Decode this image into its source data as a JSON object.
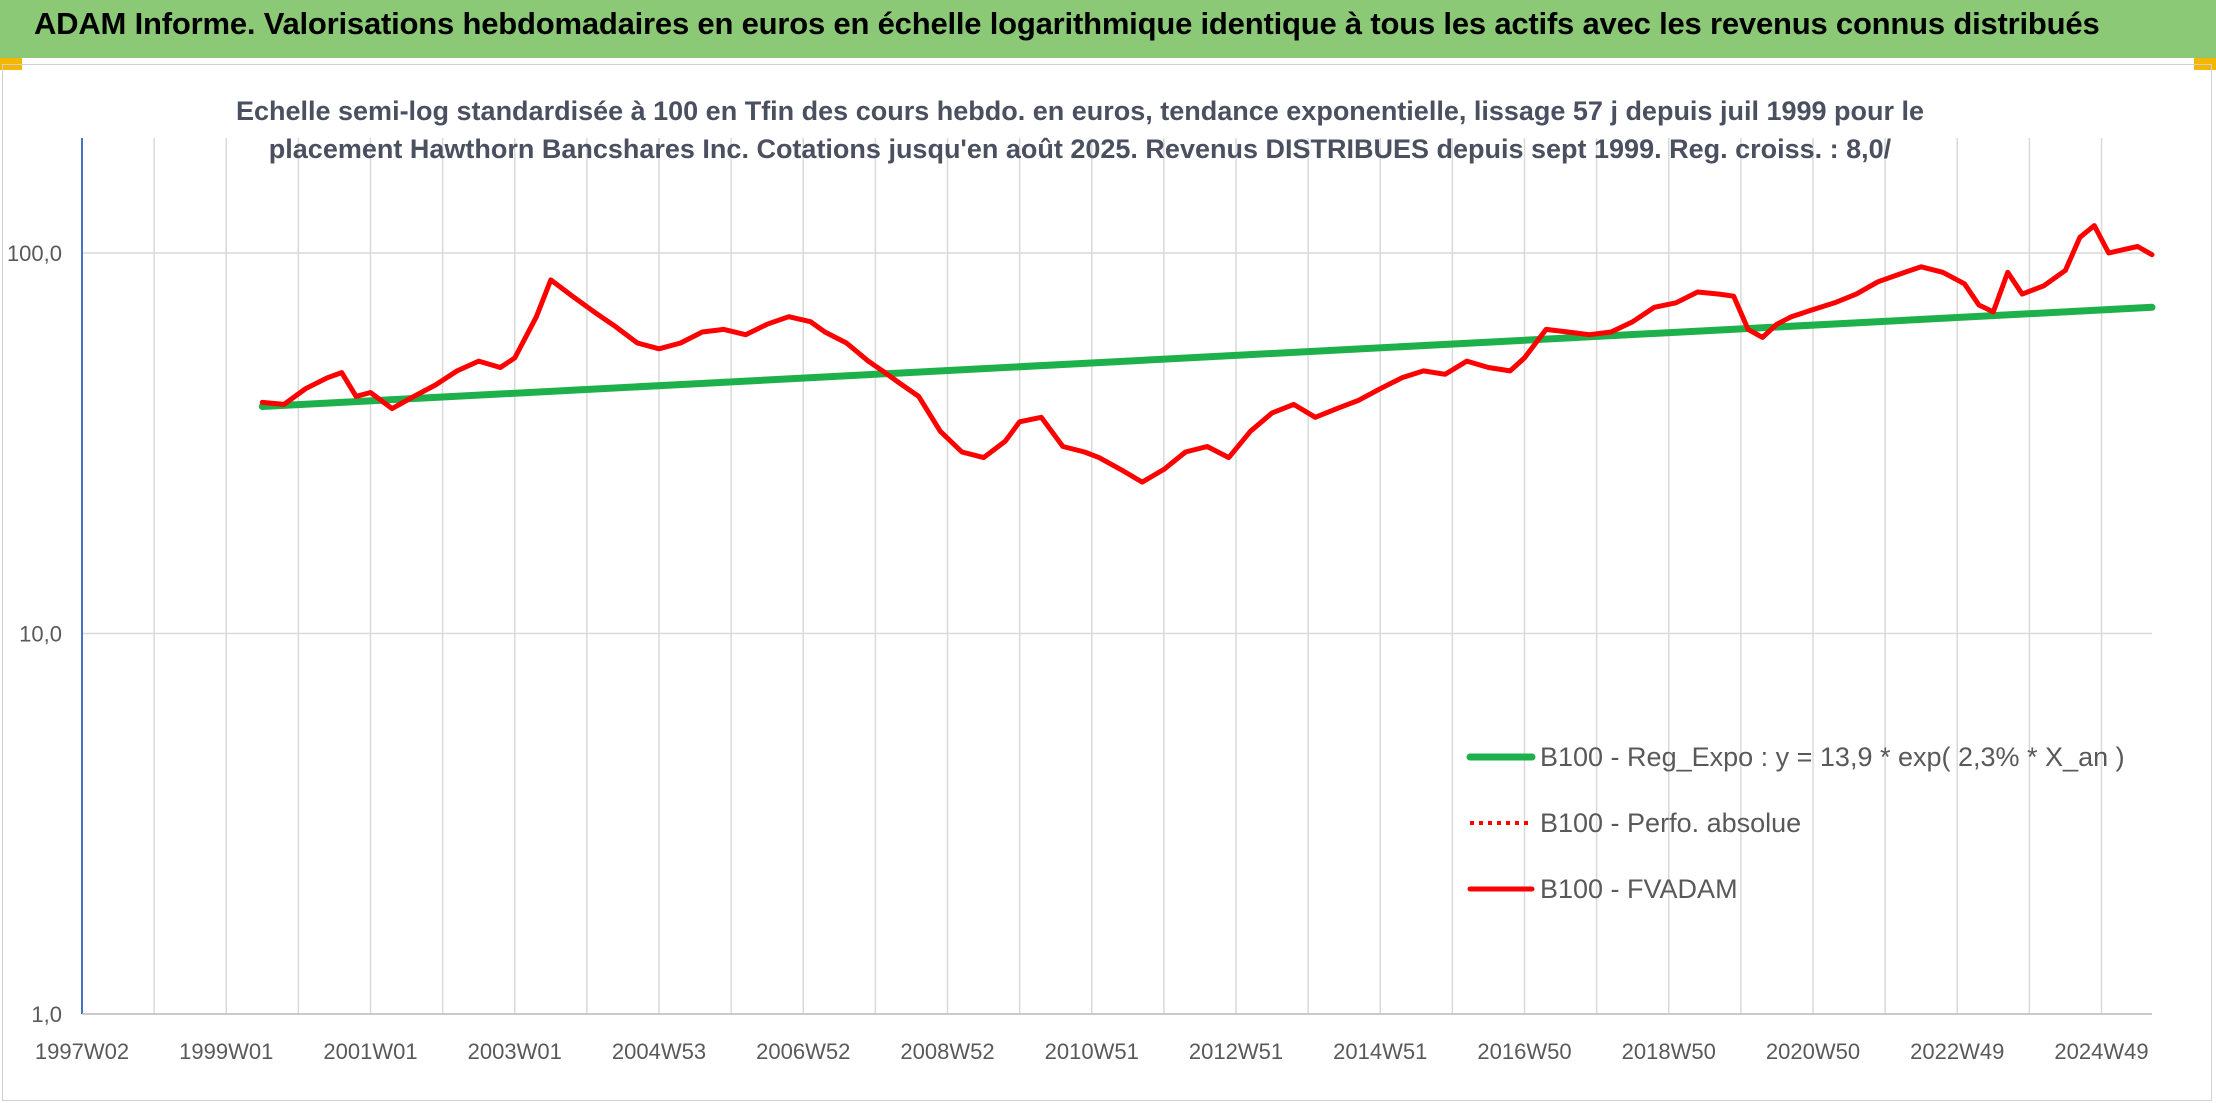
{
  "banner": {
    "title": "ADAM Informe. Valorisations hebdomadaires en euros en échelle logarithmique identique à tous les actifs avec les revenus connus distribués"
  },
  "colors": {
    "banner": "#8cc977",
    "corner": "#f3b700",
    "trend": "#1eb04b",
    "series": "#ff0000",
    "axis": "#4472c4",
    "grid": "#d9d9d9"
  },
  "chart_data": {
    "type": "line",
    "title": "Echelle semi-log standardisée à 100 en Tfin des cours hebdo. en euros, tendance exponentielle, lissage 57 j depuis juil 1999 pour le placement Hawthorn Bancshares Inc. Cotations jusqu'en août 2025. Revenus DISTRIBUES depuis sept 1999. Reg. croiss. : 8,0/",
    "y_scale": "log",
    "ylim": [
      1,
      200
    ],
    "y_ticks": [
      1,
      10,
      100
    ],
    "y_tick_labels": [
      "1,0",
      "10,0",
      "100,0"
    ],
    "xlim": [
      1997.0,
      2025.7
    ],
    "x_ticks": [
      1997.0,
      1999.0,
      2001.0,
      2003.0,
      2005.0,
      2007.0,
      2009.0,
      2011.0,
      2013.0,
      2015.0,
      2017.0,
      2019.0,
      2021.0,
      2023.0,
      2025.0
    ],
    "x_tick_labels": [
      "1997W02",
      "1999W01",
      "2001W01",
      "2003W01",
      "2004W53",
      "2006W52",
      "2008W52",
      "2010W51",
      "2012W51",
      "2014W51",
      "2016W50",
      "2018W50",
      "2020W50",
      "2022W49",
      "2024W49"
    ],
    "grid": true,
    "legend_position": "bottom-right",
    "series": [
      {
        "name": "B100 - Reg_Expo : y = 13,9 * exp( 2,3% *  X_an )",
        "style": "solid-thick",
        "color": "#1eb04b",
        "x": [
          1999.5,
          2025.7
        ],
        "y": [
          39.5,
          72
        ]
      },
      {
        "name": "B100 - Perfo. absolue",
        "style": "dotted",
        "color": "#ff0000",
        "x": [],
        "y": []
      },
      {
        "name": "B100 - FVADAM",
        "style": "solid",
        "color": "#ff0000",
        "x": [
          1999.5,
          1999.8,
          2000.1,
          2000.4,
          2000.6,
          2000.8,
          2001.0,
          2001.3,
          2001.6,
          2001.9,
          2002.2,
          2002.5,
          2002.8,
          2003.0,
          2003.3,
          2003.5,
          2003.8,
          2004.1,
          2004.4,
          2004.7,
          2005.0,
          2005.3,
          2005.6,
          2005.9,
          2006.2,
          2006.5,
          2006.8,
          2007.1,
          2007.3,
          2007.6,
          2007.9,
          2008.1,
          2008.3,
          2008.6,
          2008.9,
          2009.2,
          2009.5,
          2009.8,
          2010.0,
          2010.3,
          2010.6,
          2010.9,
          2011.1,
          2011.4,
          2011.7,
          2012.0,
          2012.3,
          2012.6,
          2012.9,
          2013.2,
          2013.5,
          2013.8,
          2014.1,
          2014.4,
          2014.7,
          2015.0,
          2015.3,
          2015.6,
          2015.9,
          2016.2,
          2016.5,
          2016.8,
          2017.0,
          2017.3,
          2017.6,
          2017.9,
          2018.2,
          2018.5,
          2018.8,
          2019.1,
          2019.4,
          2019.7,
          2019.9,
          2020.1,
          2020.3,
          2020.5,
          2020.7,
          2021.0,
          2021.3,
          2021.6,
          2021.9,
          2022.2,
          2022.5,
          2022.8,
          2023.1,
          2023.3,
          2023.5,
          2023.7,
          2023.9,
          2024.2,
          2024.5,
          2024.7,
          2024.9,
          2025.1,
          2025.3,
          2025.5,
          2025.7
        ],
        "y": [
          40.5,
          40,
          44,
          47,
          48.5,
          42,
          43,
          39,
          42,
          45,
          49,
          52,
          50,
          53,
          68,
          85,
          77,
          70,
          64,
          58,
          56,
          58,
          62,
          63,
          61,
          65,
          68,
          66,
          62,
          58,
          52,
          49,
          46,
          42,
          34,
          30,
          29,
          32,
          36,
          37,
          31,
          30,
          29,
          27,
          25,
          27,
          30,
          31,
          29,
          34,
          38,
          40,
          37,
          39,
          41,
          44,
          47,
          49,
          48,
          52,
          50,
          49,
          53,
          63,
          62,
          61,
          62,
          66,
          72,
          74,
          79,
          78,
          77,
          63,
          60,
          65,
          68,
          71,
          74,
          78,
          84,
          88,
          92,
          89,
          83,
          73,
          70,
          89,
          78,
          82,
          90,
          110,
          118,
          100,
          102,
          104,
          99
        ]
      }
    ]
  }
}
